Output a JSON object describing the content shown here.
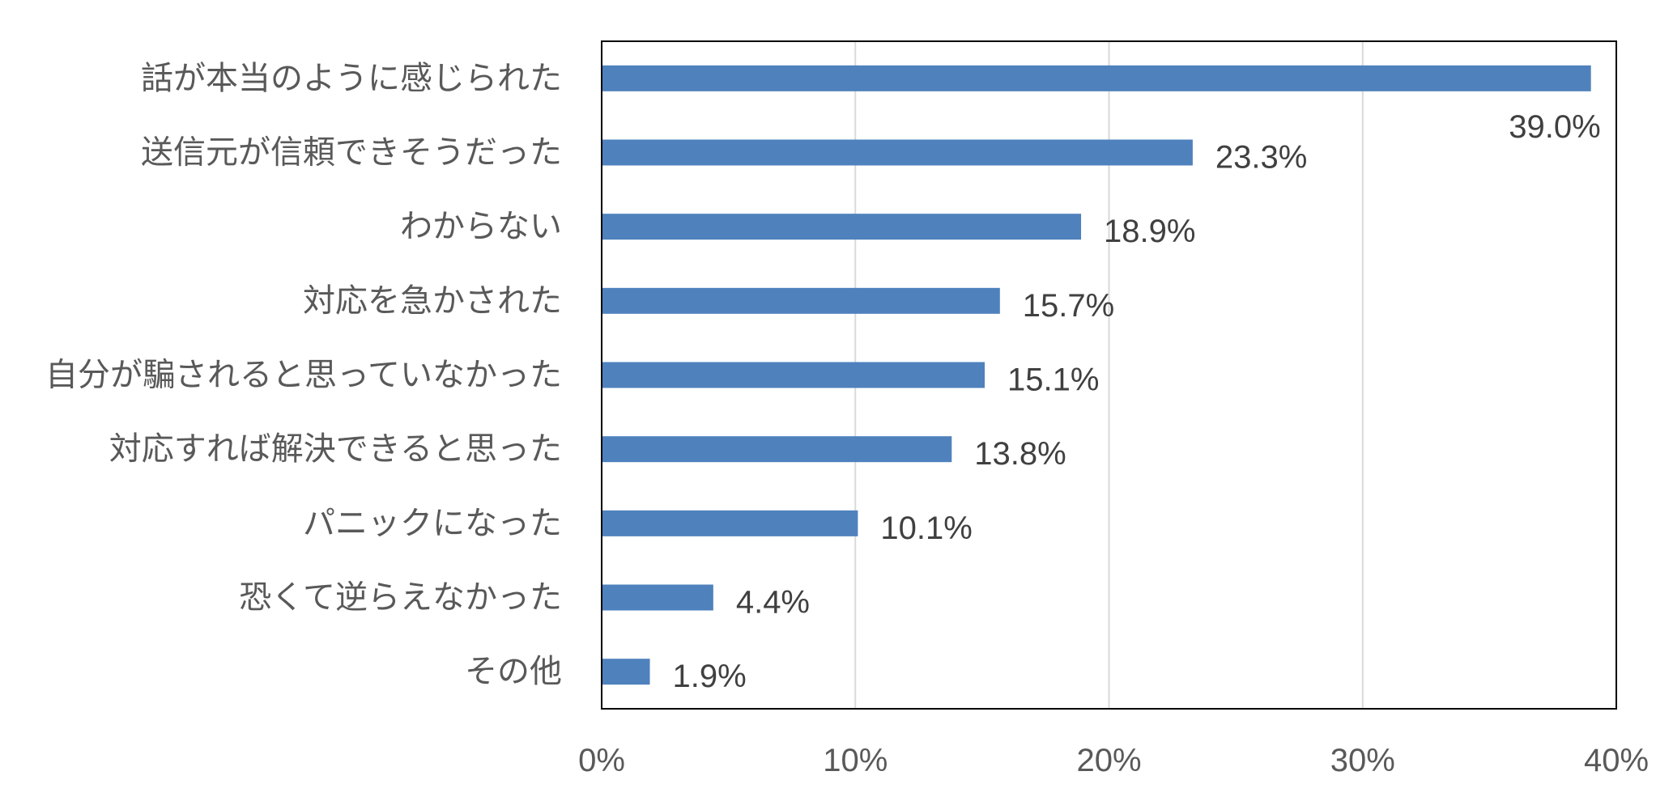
{
  "chart_data": {
    "type": "bar",
    "orientation": "horizontal",
    "title": "",
    "xlabel": "",
    "ylabel": "",
    "categories": [
      "話が本当のように感じられた",
      "送信元が信頼できそうだった",
      "わからない",
      "対応を急かされた",
      "自分が騙されると思っていなかった",
      "対応すれば解決できると思った",
      "パニックになった",
      "恐くて逆らえなかった",
      "その他"
    ],
    "values": [
      39.0,
      23.3,
      18.9,
      15.7,
      15.1,
      13.8,
      10.1,
      4.4,
      1.9
    ],
    "value_labels": [
      "39.0%",
      "23.3%",
      "18.9%",
      "15.7%",
      "15.1%",
      "13.8%",
      "10.1%",
      "4.4%",
      "1.9%"
    ],
    "unit": "%",
    "xlim": [
      0,
      40
    ],
    "x_ticks": [
      0,
      10,
      20,
      30,
      40
    ],
    "x_tick_labels": [
      "0%",
      "10%",
      "20%",
      "30%",
      "40%"
    ],
    "grid": "vertical",
    "legend": "none",
    "bar_color": "#4F81BD",
    "grid_color": "#D9D9D9"
  }
}
